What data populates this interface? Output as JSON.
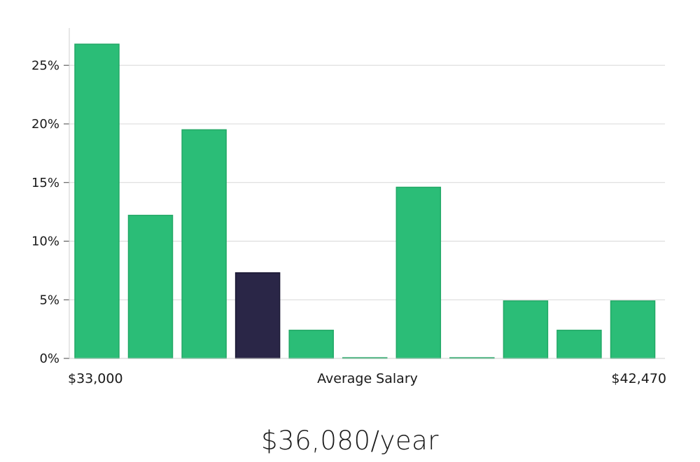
{
  "colors": {
    "bar": "#2bbd77",
    "bar_stroke": "#22a866",
    "highlight": "#2a2647",
    "grid": "#d8d8d8",
    "axis": "#cfcfcf"
  },
  "chart_data": {
    "type": "bar",
    "title": "",
    "xlabel": "Average Salary",
    "ylabel": "",
    "x_min_label": "$33,000",
    "x_max_label": "$42,470",
    "ylim": [
      0,
      28
    ],
    "yticks": [
      0,
      5,
      10,
      15,
      20,
      25
    ],
    "ytick_labels": [
      "0%",
      "5%",
      "10%",
      "15%",
      "20%",
      "25%"
    ],
    "grid": true,
    "values": [
      26.8,
      12.2,
      19.5,
      7.3,
      2.4,
      0,
      14.6,
      0,
      4.9,
      2.4,
      4.9
    ],
    "highlight_index": 3
  },
  "summary": {
    "average_salary": "$36,080/year"
  }
}
